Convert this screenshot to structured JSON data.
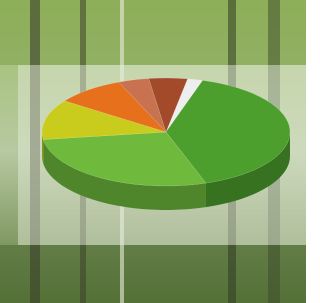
{
  "chart_data": {
    "type": "pie",
    "values": [
      2,
      40,
      28,
      12,
      9,
      4,
      5
    ],
    "colors": [
      "#eeeeee",
      "#4c9f2c",
      "#6fba3c",
      "#c9cc1c",
      "#e6701c",
      "#c87250",
      "#a24a2a"
    ],
    "three_d": true
  }
}
